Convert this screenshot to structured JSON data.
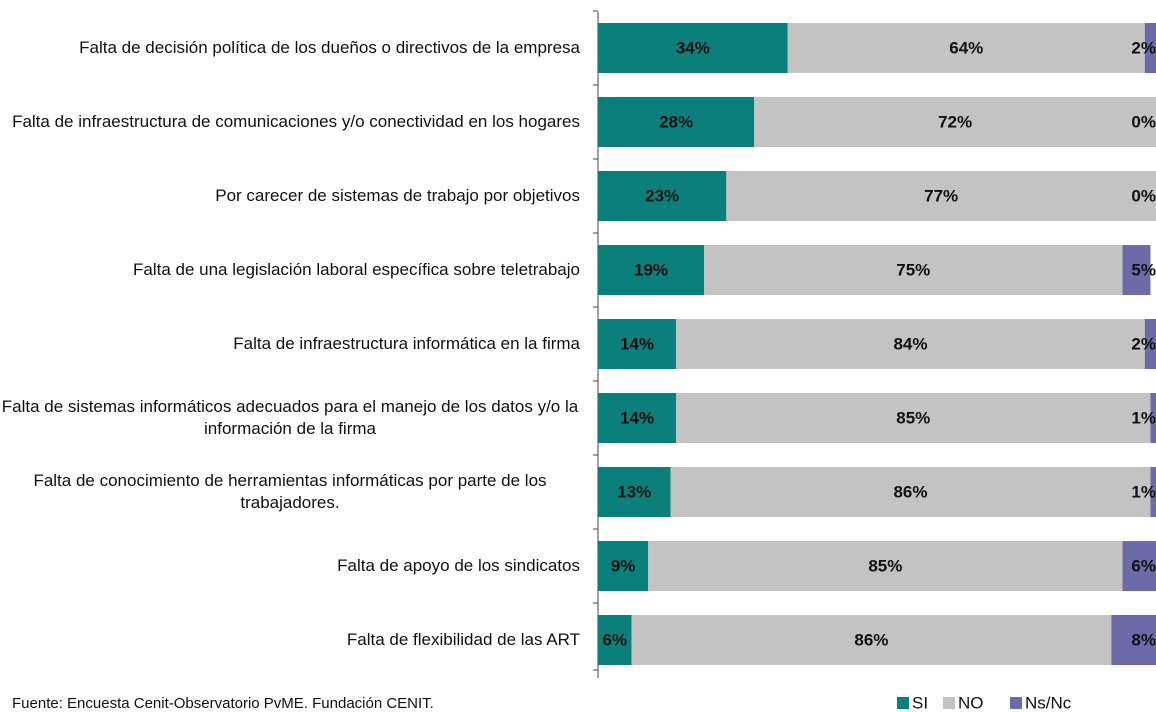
{
  "chart_data": {
    "type": "stacked_barh",
    "categories": [
      "Falta de decisión política de los dueños o directivos de la empresa",
      "Falta de infraestructura de comunicaciones y/o conectividad en los hogares",
      "Por carecer de sistemas de trabajo por objetivos",
      "Falta de una legislación laboral específica sobre teletrabajo",
      "Falta de infraestructura informática en la firma",
      "Falta de sistemas informáticos adecuados para el manejo de los datos y/o la información de la firma",
      "Falta de conocimiento de herramientas informáticas por parte de los trabajadores.",
      "Falta de apoyo de los sindicatos",
      "Falta de flexibilidad de las ART"
    ],
    "series": [
      {
        "name": "SI",
        "color": "#0b807b",
        "values": [
          34,
          28,
          23,
          19,
          14,
          14,
          13,
          9,
          6
        ],
        "value_labels": [
          "34%",
          "28%",
          "23%",
          "19%",
          "14%",
          "14%",
          "13%",
          "9%",
          "6%"
        ]
      },
      {
        "name": "NO",
        "color": "#c3c3c3",
        "values": [
          64,
          72,
          77,
          75,
          84,
          85,
          86,
          85,
          86
        ],
        "value_labels": [
          "64%",
          "72%",
          "77%",
          "75%",
          "84%",
          "85%",
          "86%",
          "85%",
          "86%"
        ]
      },
      {
        "name": "Ns/Nc",
        "color": "#6c6aa8",
        "values": [
          2,
          0,
          0,
          5,
          2,
          1,
          1,
          6,
          8
        ],
        "value_labels": [
          "2%",
          "0%",
          "0%",
          "5%",
          "2%",
          "1%",
          "1%",
          "6%",
          "8%"
        ]
      }
    ],
    "xlim": [
      0,
      100
    ],
    "source": "Fuente:  Encuesta Cenit-Observatorio PvME. Fundación CENIT.",
    "legend": "bottom-right"
  }
}
